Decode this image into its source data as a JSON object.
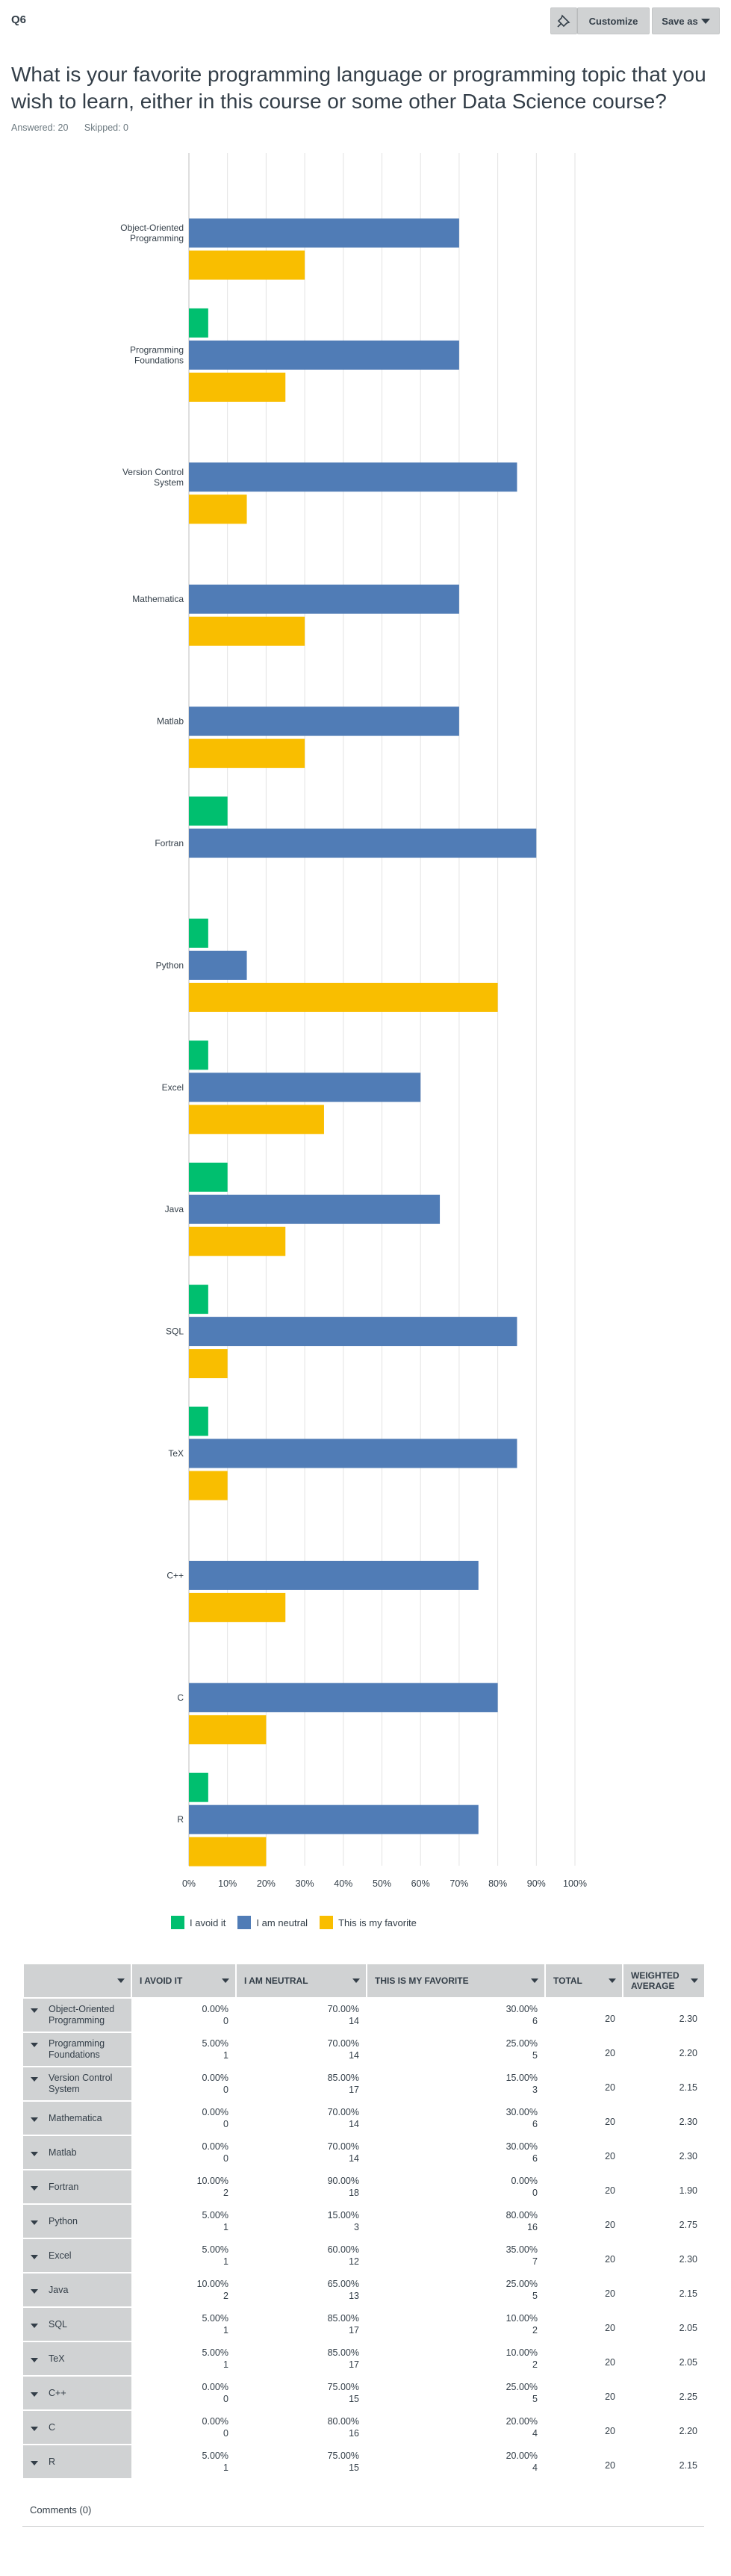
{
  "header": {
    "question_id": "Q6",
    "customize_label": "Customize",
    "save_as_label": "Save as"
  },
  "question": {
    "title": "What is your favorite programming language or programming topic that you wish to learn, either in this course or some other Data Science course?",
    "answered": "Answered: 20",
    "skipped": "Skipped: 0"
  },
  "colors": {
    "avoid": "#00bf6f",
    "neutral": "#507cb6",
    "favorite": "#f9be00",
    "grid": "#e3e3e3"
  },
  "chart_data": {
    "type": "bar",
    "orientation": "horizontal",
    "categories": [
      "Object-Oriented Programming",
      "Programming Foundations",
      "Version Control System",
      "Mathematica",
      "Matlab",
      "Fortran",
      "Python",
      "Excel",
      "Java",
      "SQL",
      "TeX",
      "C++",
      "C",
      "R"
    ],
    "series": [
      {
        "name": "I avoid it",
        "values": [
          0,
          5,
          0,
          0,
          0,
          10,
          5,
          5,
          10,
          5,
          5,
          0,
          0,
          5
        ]
      },
      {
        "name": "I am neutral",
        "values": [
          70,
          70,
          85,
          70,
          70,
          90,
          15,
          60,
          65,
          85,
          85,
          75,
          80,
          75
        ]
      },
      {
        "name": "This is my favorite",
        "values": [
          30,
          25,
          15,
          30,
          30,
          0,
          80,
          35,
          25,
          10,
          10,
          25,
          20,
          20
        ]
      }
    ],
    "xlim": [
      0,
      100
    ],
    "x_ticks": [
      "0%",
      "10%",
      "20%",
      "30%",
      "40%",
      "50%",
      "60%",
      "70%",
      "80%",
      "90%",
      "100%"
    ],
    "grid": true,
    "legend": "bottom"
  },
  "legend": [
    {
      "label": "I avoid it",
      "color": "#00bf6f"
    },
    {
      "label": "I am neutral",
      "color": "#507cb6"
    },
    {
      "label": "This is my favorite",
      "color": "#f9be00"
    }
  ],
  "table": {
    "headers": [
      "",
      "I AVOID IT",
      "I AM NEUTRAL",
      "THIS IS MY FAVORITE",
      "TOTAL",
      "WEIGHTED AVERAGE"
    ],
    "rows": [
      {
        "label": "Object-Oriented Programming",
        "cells": [
          [
            "0.00%",
            "0"
          ],
          [
            "70.00%",
            "14"
          ],
          [
            "30.00%",
            "6"
          ]
        ],
        "total": "20",
        "wavg": "2.30"
      },
      {
        "label": "Programming Foundations",
        "cells": [
          [
            "5.00%",
            "1"
          ],
          [
            "70.00%",
            "14"
          ],
          [
            "25.00%",
            "5"
          ]
        ],
        "total": "20",
        "wavg": "2.20"
      },
      {
        "label": "Version Control System",
        "cells": [
          [
            "0.00%",
            "0"
          ],
          [
            "85.00%",
            "17"
          ],
          [
            "15.00%",
            "3"
          ]
        ],
        "total": "20",
        "wavg": "2.15"
      },
      {
        "label": "Mathematica",
        "cells": [
          [
            "0.00%",
            "0"
          ],
          [
            "70.00%",
            "14"
          ],
          [
            "30.00%",
            "6"
          ]
        ],
        "total": "20",
        "wavg": "2.30"
      },
      {
        "label": "Matlab",
        "cells": [
          [
            "0.00%",
            "0"
          ],
          [
            "70.00%",
            "14"
          ],
          [
            "30.00%",
            "6"
          ]
        ],
        "total": "20",
        "wavg": "2.30"
      },
      {
        "label": "Fortran",
        "cells": [
          [
            "10.00%",
            "2"
          ],
          [
            "90.00%",
            "18"
          ],
          [
            "0.00%",
            "0"
          ]
        ],
        "total": "20",
        "wavg": "1.90"
      },
      {
        "label": "Python",
        "cells": [
          [
            "5.00%",
            "1"
          ],
          [
            "15.00%",
            "3"
          ],
          [
            "80.00%",
            "16"
          ]
        ],
        "total": "20",
        "wavg": "2.75"
      },
      {
        "label": "Excel",
        "cells": [
          [
            "5.00%",
            "1"
          ],
          [
            "60.00%",
            "12"
          ],
          [
            "35.00%",
            "7"
          ]
        ],
        "total": "20",
        "wavg": "2.30"
      },
      {
        "label": "Java",
        "cells": [
          [
            "10.00%",
            "2"
          ],
          [
            "65.00%",
            "13"
          ],
          [
            "25.00%",
            "5"
          ]
        ],
        "total": "20",
        "wavg": "2.15"
      },
      {
        "label": "SQL",
        "cells": [
          [
            "5.00%",
            "1"
          ],
          [
            "85.00%",
            "17"
          ],
          [
            "10.00%",
            "2"
          ]
        ],
        "total": "20",
        "wavg": "2.05"
      },
      {
        "label": "TeX",
        "cells": [
          [
            "5.00%",
            "1"
          ],
          [
            "85.00%",
            "17"
          ],
          [
            "10.00%",
            "2"
          ]
        ],
        "total": "20",
        "wavg": "2.05"
      },
      {
        "label": "C++",
        "cells": [
          [
            "0.00%",
            "0"
          ],
          [
            "75.00%",
            "15"
          ],
          [
            "25.00%",
            "5"
          ]
        ],
        "total": "20",
        "wavg": "2.25"
      },
      {
        "label": "C",
        "cells": [
          [
            "0.00%",
            "0"
          ],
          [
            "80.00%",
            "16"
          ],
          [
            "20.00%",
            "4"
          ]
        ],
        "total": "20",
        "wavg": "2.20"
      },
      {
        "label": "R",
        "cells": [
          [
            "5.00%",
            "1"
          ],
          [
            "75.00%",
            "15"
          ],
          [
            "20.00%",
            "4"
          ]
        ],
        "total": "20",
        "wavg": "2.15"
      }
    ]
  },
  "comments_label": "Comments (0)"
}
